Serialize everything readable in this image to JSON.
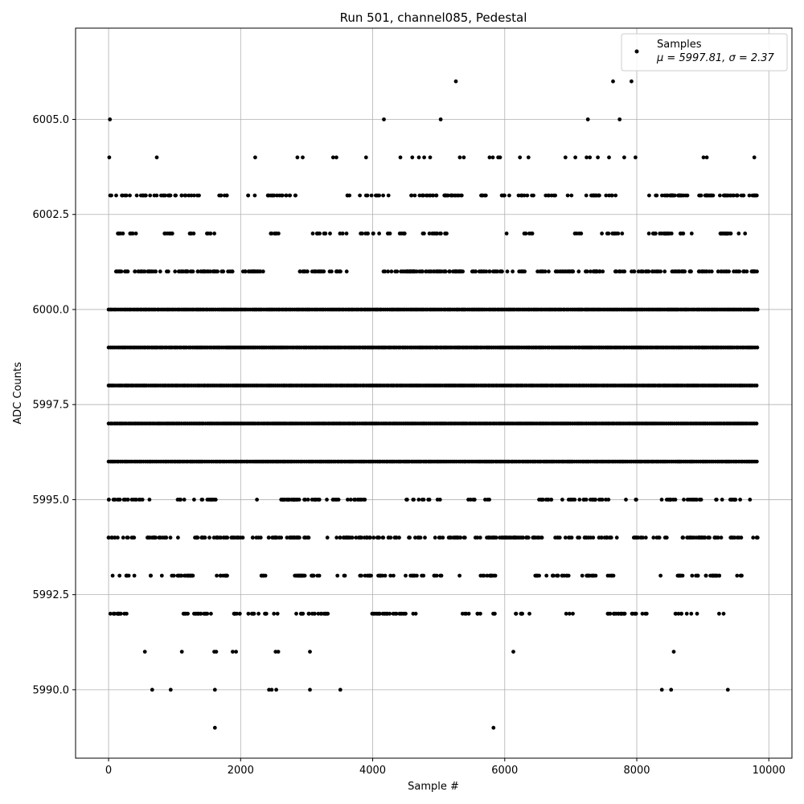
{
  "chart_data": {
    "type": "scatter",
    "title": "Run 501, channel085, Pedestal",
    "xlabel": "Sample #",
    "ylabel": "ADC Counts",
    "xlim": [
      -500,
      10350
    ],
    "ylim": [
      5988.2,
      6007.4
    ],
    "xticks": [
      0,
      2000,
      4000,
      6000,
      8000,
      10000
    ],
    "xtick_labels": [
      "0",
      "2000",
      "4000",
      "6000",
      "8000",
      "10000"
    ],
    "yticks": [
      5990.0,
      5992.5,
      5995.0,
      5997.5,
      6000.0,
      6002.5,
      6005.0
    ],
    "ytick_labels": [
      "5990.0",
      "5992.5",
      "5995.0",
      "5997.5",
      "6000.0",
      "6002.5",
      "6005.0"
    ],
    "grid": true,
    "legend_position": "top-right",
    "series": [
      {
        "name": "Samples",
        "color": "#000000",
        "stats_label": "μ = 5997.81, σ = 2.37",
        "mean": 5997.81,
        "std": 2.37,
        "sample_count": 9830,
        "dense_levels": [
          {
            "y": 5996,
            "x_range": [
              0,
              9830
            ]
          },
          {
            "y": 5997,
            "x_range": [
              0,
              9830
            ]
          },
          {
            "y": 5998,
            "x_range": [
              0,
              9830
            ]
          },
          {
            "y": 5999,
            "x_range": [
              0,
              9830
            ]
          },
          {
            "y": 6000,
            "x_range": [
              0,
              9830
            ]
          }
        ],
        "sparse_levels": [
          {
            "y": 5992,
            "count": 150
          },
          {
            "y": 5993,
            "count": 180
          },
          {
            "y": 5994,
            "count": 360
          },
          {
            "y": 5995,
            "count": 200
          },
          {
            "y": 6001,
            "count": 380
          },
          {
            "y": 6002,
            "count": 150
          },
          {
            "y": 6003,
            "count": 240
          }
        ],
        "points": [
          {
            "x": 20,
            "y": 6005
          },
          {
            "x": 4170,
            "y": 6005
          },
          {
            "x": 5030,
            "y": 6005
          },
          {
            "x": 7260,
            "y": 6005
          },
          {
            "x": 7740,
            "y": 6005
          },
          {
            "x": 5260,
            "y": 6006
          },
          {
            "x": 7640,
            "y": 6006
          },
          {
            "x": 7920,
            "y": 6006
          },
          {
            "x": 10,
            "y": 6004
          },
          {
            "x": 730,
            "y": 6004
          },
          {
            "x": 2220,
            "y": 6004
          },
          {
            "x": 2860,
            "y": 6004
          },
          {
            "x": 2940,
            "y": 6004
          },
          {
            "x": 3400,
            "y": 6004
          },
          {
            "x": 3450,
            "y": 6004
          },
          {
            "x": 3900,
            "y": 6004
          },
          {
            "x": 4420,
            "y": 6004
          },
          {
            "x": 4600,
            "y": 6004
          },
          {
            "x": 4700,
            "y": 6004
          },
          {
            "x": 4780,
            "y": 6004
          },
          {
            "x": 4870,
            "y": 6004
          },
          {
            "x": 5320,
            "y": 6004
          },
          {
            "x": 5380,
            "y": 6004
          },
          {
            "x": 5770,
            "y": 6004
          },
          {
            "x": 5820,
            "y": 6004
          },
          {
            "x": 5900,
            "y": 6004
          },
          {
            "x": 5930,
            "y": 6004
          },
          {
            "x": 6230,
            "y": 6004
          },
          {
            "x": 6360,
            "y": 6004
          },
          {
            "x": 6920,
            "y": 6004
          },
          {
            "x": 7070,
            "y": 6004
          },
          {
            "x": 7240,
            "y": 6004
          },
          {
            "x": 7290,
            "y": 6004
          },
          {
            "x": 7410,
            "y": 6004
          },
          {
            "x": 7580,
            "y": 6004
          },
          {
            "x": 7810,
            "y": 6004
          },
          {
            "x": 7980,
            "y": 6004
          },
          {
            "x": 9010,
            "y": 6004
          },
          {
            "x": 9060,
            "y": 6004
          },
          {
            "x": 9780,
            "y": 6004
          },
          {
            "x": 550,
            "y": 5991
          },
          {
            "x": 1110,
            "y": 5991
          },
          {
            "x": 1600,
            "y": 5991
          },
          {
            "x": 1630,
            "y": 5991
          },
          {
            "x": 1880,
            "y": 5991
          },
          {
            "x": 1930,
            "y": 5991
          },
          {
            "x": 2530,
            "y": 5991
          },
          {
            "x": 2570,
            "y": 5991
          },
          {
            "x": 3050,
            "y": 5991
          },
          {
            "x": 6130,
            "y": 5991
          },
          {
            "x": 8560,
            "y": 5991
          },
          {
            "x": 660,
            "y": 5990
          },
          {
            "x": 940,
            "y": 5990
          },
          {
            "x": 1610,
            "y": 5990
          },
          {
            "x": 2430,
            "y": 5990
          },
          {
            "x": 2470,
            "y": 5990
          },
          {
            "x": 2540,
            "y": 5990
          },
          {
            "x": 3050,
            "y": 5990
          },
          {
            "x": 3510,
            "y": 5990
          },
          {
            "x": 8380,
            "y": 5990
          },
          {
            "x": 8520,
            "y": 5990
          },
          {
            "x": 9380,
            "y": 5990
          },
          {
            "x": 1610,
            "y": 5989
          },
          {
            "x": 5830,
            "y": 5989
          }
        ]
      }
    ]
  }
}
